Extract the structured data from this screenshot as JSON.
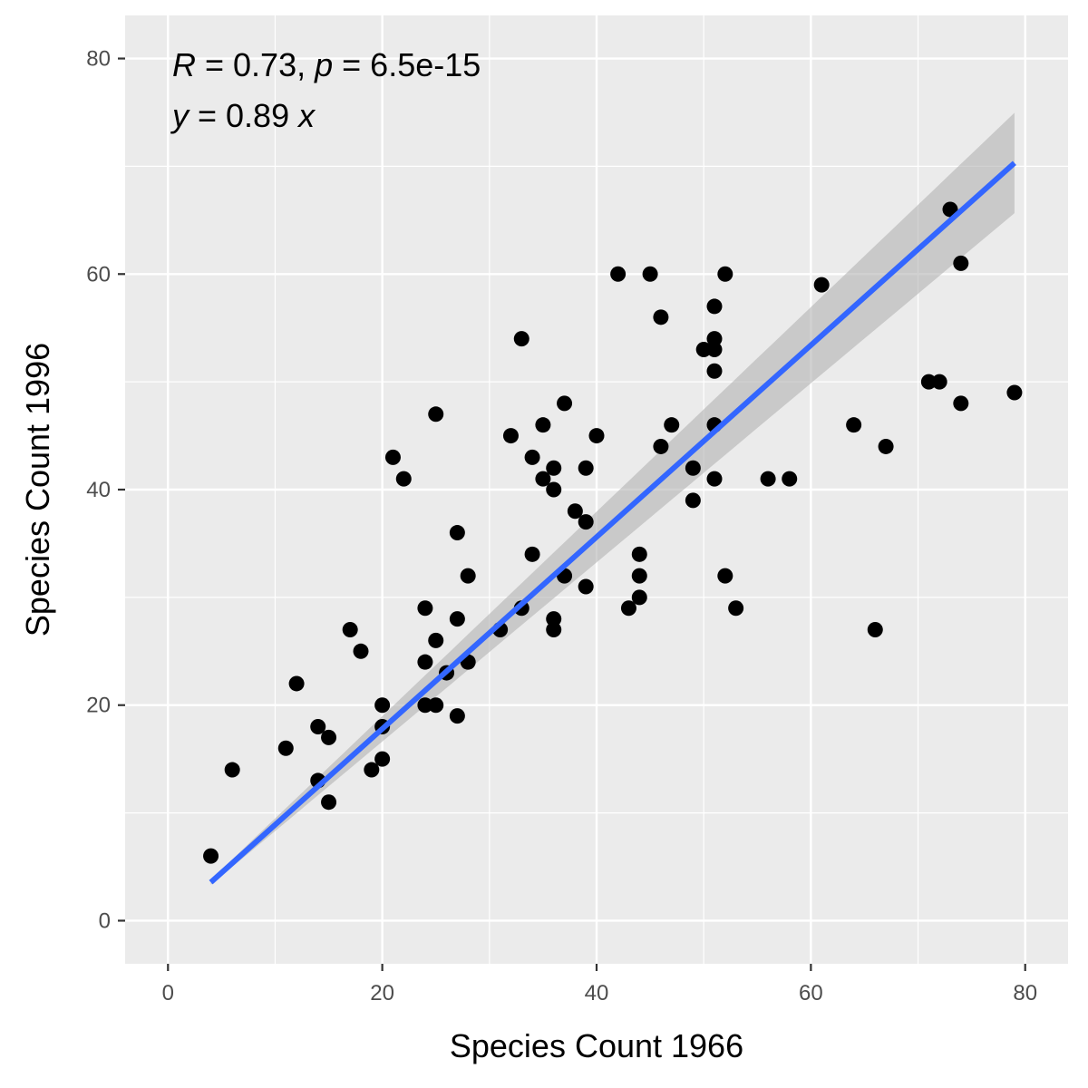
{
  "chart_data": {
    "type": "scatter",
    "xlabel": "Species Count 1966",
    "ylabel": "Species Count 1996",
    "xlim": [
      -4,
      84
    ],
    "ylim": [
      -4,
      84
    ],
    "x_ticks": [
      0,
      20,
      40,
      60,
      80
    ],
    "y_ticks": [
      0,
      20,
      40,
      60,
      80
    ],
    "x_tick_labels": [
      "0",
      "20",
      "40",
      "60",
      "80"
    ],
    "y_tick_labels": [
      "0",
      "20",
      "40",
      "60",
      "80"
    ],
    "grid": true,
    "legend": "none",
    "annotation": {
      "r_symbol": "R",
      "r_rest": " = 0.73, ",
      "p_symbol": "p",
      "p_rest": " = 6.5e-15",
      "y_symbol": "y",
      "eq_rest": " = 0.89 ",
      "x_symbol": "x"
    },
    "fit": {
      "slope": 0.89,
      "intercept": 0,
      "x_range": [
        4,
        79
      ]
    },
    "colors": {
      "panel": "#ebebeb",
      "grid": "#ffffff",
      "points": "#000000",
      "fit_line": "#3366ff",
      "confidence_band": "#b3b3b3"
    },
    "points": [
      [
        4,
        6
      ],
      [
        6,
        14
      ],
      [
        11,
        16
      ],
      [
        12,
        22
      ],
      [
        14,
        18
      ],
      [
        14,
        13
      ],
      [
        15,
        17
      ],
      [
        15,
        11
      ],
      [
        17,
        27
      ],
      [
        18,
        25
      ],
      [
        19,
        14
      ],
      [
        20,
        20
      ],
      [
        20,
        18
      ],
      [
        20,
        15
      ],
      [
        21,
        43
      ],
      [
        22,
        41
      ],
      [
        24,
        29
      ],
      [
        24,
        24
      ],
      [
        24,
        20
      ],
      [
        25,
        47
      ],
      [
        25,
        26
      ],
      [
        25,
        20
      ],
      [
        26,
        23
      ],
      [
        27,
        36
      ],
      [
        27,
        28
      ],
      [
        27,
        19
      ],
      [
        28,
        32
      ],
      [
        28,
        24
      ],
      [
        31,
        27
      ],
      [
        32,
        45
      ],
      [
        33,
        54
      ],
      [
        33,
        29
      ],
      [
        34,
        43
      ],
      [
        34,
        34
      ],
      [
        35,
        46
      ],
      [
        35,
        41
      ],
      [
        36,
        42
      ],
      [
        36,
        40
      ],
      [
        36,
        28
      ],
      [
        36,
        27
      ],
      [
        37,
        48
      ],
      [
        37,
        32
      ],
      [
        38,
        38
      ],
      [
        39,
        42
      ],
      [
        39,
        37
      ],
      [
        39,
        31
      ],
      [
        40,
        45
      ],
      [
        42,
        60
      ],
      [
        43,
        29
      ],
      [
        44,
        34
      ],
      [
        44,
        32
      ],
      [
        44,
        30
      ],
      [
        45,
        60
      ],
      [
        46,
        56
      ],
      [
        46,
        44
      ],
      [
        47,
        46
      ],
      [
        49,
        42
      ],
      [
        49,
        39
      ],
      [
        50,
        53
      ],
      [
        51,
        57
      ],
      [
        51,
        54
      ],
      [
        51,
        53
      ],
      [
        51,
        51
      ],
      [
        51,
        46
      ],
      [
        51,
        41
      ],
      [
        52,
        60
      ],
      [
        52,
        32
      ],
      [
        53,
        29
      ],
      [
        56,
        41
      ],
      [
        58,
        41
      ],
      [
        61,
        59
      ],
      [
        64,
        46
      ],
      [
        66,
        27
      ],
      [
        67,
        44
      ],
      [
        71,
        50
      ],
      [
        72,
        50
      ],
      [
        73,
        66
      ],
      [
        74,
        61
      ],
      [
        74,
        48
      ],
      [
        79,
        49
      ]
    ]
  }
}
